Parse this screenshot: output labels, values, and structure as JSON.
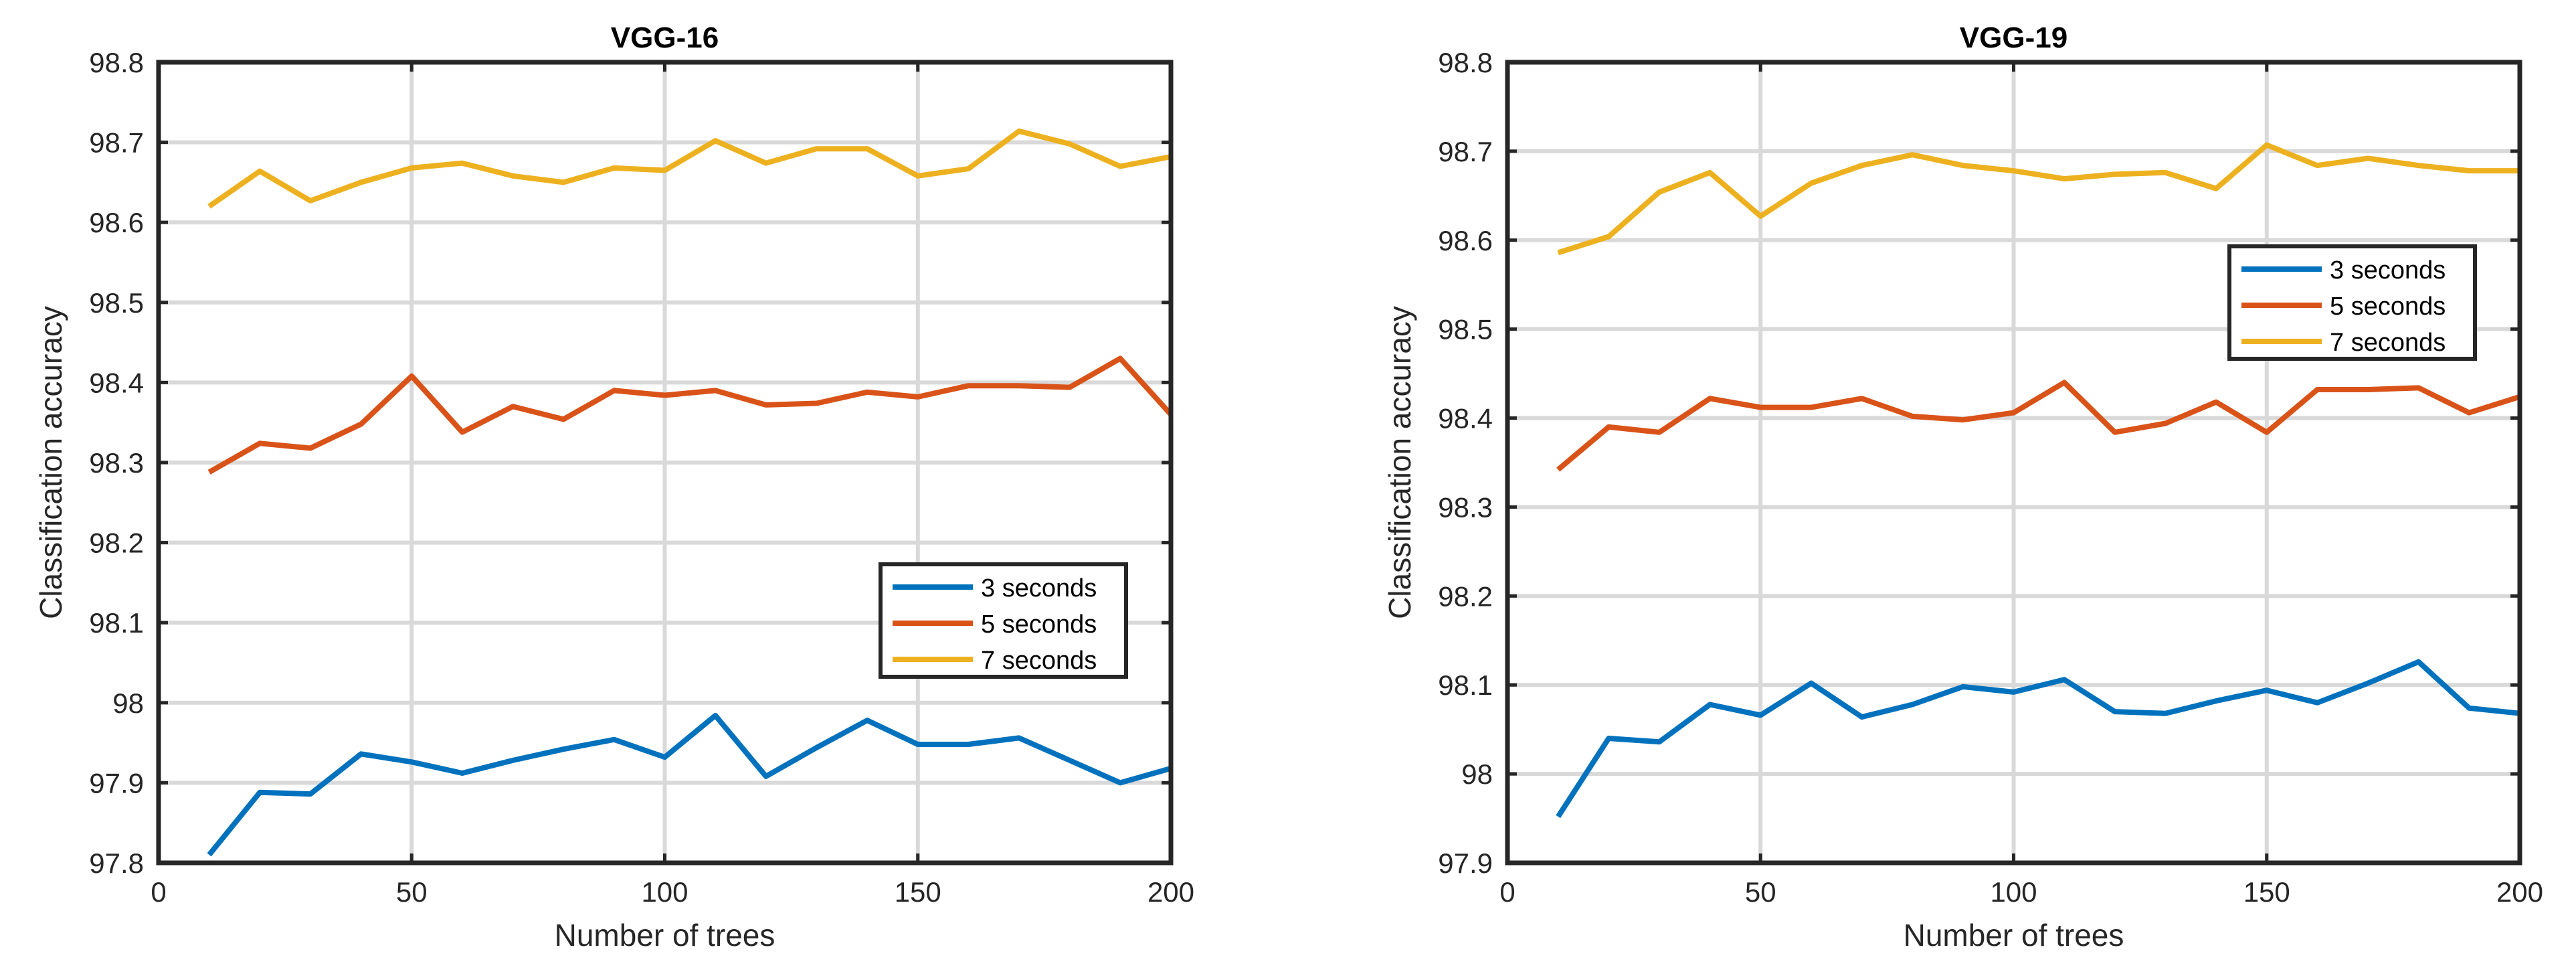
{
  "chart_data": [
    {
      "type": "line",
      "title": "VGG-16",
      "xlabel": "Number of trees",
      "ylabel": "Classification accuracy",
      "xlim": [
        0,
        200
      ],
      "ylim": [
        97.8,
        98.8
      ],
      "xticks": [
        0,
        50,
        100,
        150,
        200
      ],
      "yticks": [
        97.8,
        97.9,
        98,
        98.1,
        98.2,
        98.3,
        98.4,
        98.5,
        98.6,
        98.7,
        98.8
      ],
      "xtick_labels": [
        "0",
        "50",
        "100",
        "150",
        "200"
      ],
      "ytick_labels": [
        "97.8",
        "97.9",
        "98",
        "98.1",
        "98.2",
        "98.3",
        "98.4",
        "98.5",
        "98.6",
        "98.7",
        "98.8"
      ],
      "grid": true,
      "legend_position": "lower-right",
      "x": [
        10,
        20,
        30,
        40,
        50,
        60,
        70,
        80,
        90,
        100,
        110,
        120,
        130,
        140,
        150,
        160,
        170,
        180,
        190,
        200
      ],
      "series": [
        {
          "name": "3 seconds",
          "color": "#0072BD",
          "values": [
            97.81,
            97.888,
            97.886,
            97.936,
            97.926,
            97.912,
            97.928,
            97.942,
            97.954,
            97.932,
            97.984,
            97.908,
            97.944,
            97.978,
            97.948,
            97.948,
            97.956,
            97.928,
            97.9,
            97.918
          ]
        },
        {
          "name": "5 seconds",
          "color": "#D95319",
          "values": [
            98.288,
            98.324,
            98.318,
            98.348,
            98.408,
            98.338,
            98.37,
            98.354,
            98.39,
            98.384,
            98.39,
            98.372,
            98.374,
            98.388,
            98.382,
            98.396,
            98.396,
            98.394,
            98.43,
            98.36
          ]
        },
        {
          "name": "7 seconds",
          "color": "#EDB120",
          "values": [
            98.62,
            98.664,
            98.627,
            98.65,
            98.668,
            98.674,
            98.658,
            98.65,
            98.668,
            98.665,
            98.702,
            98.674,
            98.692,
            98.692,
            98.658,
            98.667,
            98.714,
            98.698,
            98.67,
            98.682
          ]
        }
      ]
    },
    {
      "type": "line",
      "title": "VGG-19",
      "xlabel": "Number of trees",
      "ylabel": "Classification accuracy",
      "xlim": [
        0,
        200
      ],
      "ylim": [
        97.9,
        98.8
      ],
      "xticks": [
        0,
        50,
        100,
        150,
        200
      ],
      "yticks": [
        97.9,
        98,
        98.1,
        98.2,
        98.3,
        98.4,
        98.5,
        98.6,
        98.7,
        98.8
      ],
      "xtick_labels": [
        "0",
        "50",
        "100",
        "150",
        "200"
      ],
      "ytick_labels": [
        "97.9",
        "98",
        "98.1",
        "98.2",
        "98.3",
        "98.4",
        "98.5",
        "98.6",
        "98.7",
        "98.8"
      ],
      "grid": true,
      "legend_position": "upper-right",
      "x": [
        10,
        20,
        30,
        40,
        50,
        60,
        70,
        80,
        90,
        100,
        110,
        120,
        130,
        140,
        150,
        160,
        170,
        180,
        190,
        200
      ],
      "series": [
        {
          "name": "3 seconds",
          "color": "#0072BD",
          "values": [
            97.952,
            98.04,
            98.036,
            98.078,
            98.066,
            98.102,
            98.064,
            98.078,
            98.098,
            98.092,
            98.106,
            98.07,
            98.068,
            98.082,
            98.094,
            98.08,
            98.102,
            98.126,
            98.074,
            98.068
          ]
        },
        {
          "name": "5 seconds",
          "color": "#D95319",
          "values": [
            98.342,
            98.39,
            98.384,
            98.422,
            98.412,
            98.412,
            98.422,
            98.402,
            98.398,
            98.406,
            98.44,
            98.384,
            98.394,
            98.418,
            98.384,
            98.432,
            98.432,
            98.434,
            98.406,
            98.424
          ]
        },
        {
          "name": "7 seconds",
          "color": "#EDB120",
          "values": [
            98.586,
            98.604,
            98.654,
            98.676,
            98.627,
            98.664,
            98.684,
            98.696,
            98.684,
            98.678,
            98.669,
            98.674,
            98.676,
            98.658,
            98.707,
            98.684,
            98.692,
            98.684,
            98.678,
            98.678
          ]
        }
      ]
    }
  ]
}
